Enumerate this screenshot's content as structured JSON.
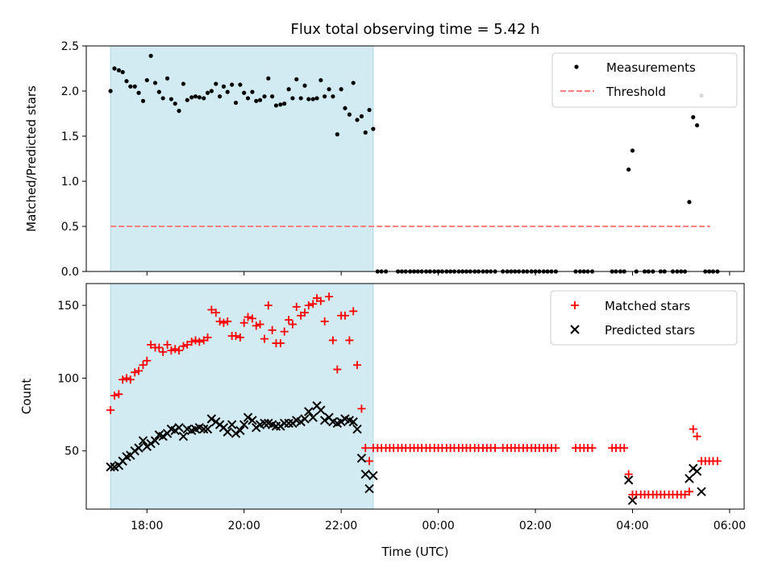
{
  "chart_data": {
    "title": "Flux total observing time = 5.42 h",
    "xlabel": "Time (UTC)",
    "x_unit": "hours since 00:00 of first day (17.25 = 17:15)",
    "x_range": [
      16.75,
      30.3
    ],
    "x_tick_values": [
      18,
      20,
      22,
      24,
      26,
      28,
      30
    ],
    "x_tick_labels": [
      "18:00",
      "20:00",
      "22:00",
      "00:00",
      "02:00",
      "04:00",
      "06:00"
    ],
    "observing_window": [
      17.25,
      22.66
    ],
    "colors": {
      "shade": "#add8e6",
      "matched": "#ff0000",
      "predicted": "#000000",
      "threshold": "#ff7f7f",
      "ratio": "#000000"
    },
    "top": {
      "type": "scatter",
      "ylabel": "Matched/Predicted stars",
      "ylim": [
        0,
        2.5
      ],
      "y_tick_values": [
        0,
        0.5,
        1,
        1.5,
        2,
        2.5
      ],
      "y_tick_labels": [
        "0.0",
        "0.5",
        "1.0",
        "1.5",
        "2.0",
        "2.5"
      ],
      "threshold": 0.5,
      "threshold_x": [
        17.25,
        29.6
      ],
      "legend": [
        "Measurements",
        "Threshold"
      ],
      "points": [
        [
          17.25,
          2.0
        ],
        [
          17.33,
          2.25
        ],
        [
          17.42,
          2.23
        ],
        [
          17.5,
          2.21
        ],
        [
          17.58,
          2.11
        ],
        [
          17.66,
          2.05
        ],
        [
          17.75,
          2.05
        ],
        [
          17.83,
          1.98
        ],
        [
          17.92,
          1.89
        ],
        [
          18.0,
          2.12
        ],
        [
          18.08,
          2.39
        ],
        [
          18.17,
          2.09
        ],
        [
          18.25,
          1.99
        ],
        [
          18.33,
          1.92
        ],
        [
          18.42,
          2.14
        ],
        [
          18.5,
          1.91
        ],
        [
          18.58,
          1.86
        ],
        [
          18.66,
          1.78
        ],
        [
          18.75,
          2.08
        ],
        [
          18.83,
          1.9
        ],
        [
          18.92,
          1.93
        ],
        [
          19.0,
          1.94
        ],
        [
          19.08,
          1.93
        ],
        [
          19.17,
          1.92
        ],
        [
          19.25,
          1.98
        ],
        [
          19.33,
          2.0
        ],
        [
          19.42,
          2.08
        ],
        [
          19.5,
          1.94
        ],
        [
          19.58,
          2.05
        ],
        [
          19.66,
          1.99
        ],
        [
          19.75,
          2.07
        ],
        [
          19.83,
          1.87
        ],
        [
          19.92,
          2.07
        ],
        [
          20.0,
          1.98
        ],
        [
          20.08,
          1.92
        ],
        [
          20.17,
          1.99
        ],
        [
          20.25,
          1.89
        ],
        [
          20.33,
          1.9
        ],
        [
          20.42,
          1.94
        ],
        [
          20.5,
          2.14
        ],
        [
          20.58,
          1.94
        ],
        [
          20.66,
          1.84
        ],
        [
          20.75,
          1.85
        ],
        [
          20.83,
          1.86
        ],
        [
          20.92,
          2.02
        ],
        [
          21.0,
          1.92
        ],
        [
          21.08,
          2.13
        ],
        [
          21.17,
          1.92
        ],
        [
          21.25,
          2.06
        ],
        [
          21.33,
          1.91
        ],
        [
          21.42,
          1.91
        ],
        [
          21.5,
          1.92
        ],
        [
          21.58,
          2.12
        ],
        [
          21.66,
          1.94
        ],
        [
          21.75,
          2.02
        ],
        [
          21.83,
          1.94
        ],
        [
          21.92,
          1.52
        ],
        [
          22.0,
          2.02
        ],
        [
          22.08,
          1.81
        ],
        [
          22.17,
          1.74
        ],
        [
          22.25,
          2.09
        ],
        [
          22.33,
          1.68
        ],
        [
          22.42,
          1.72
        ],
        [
          22.5,
          1.54
        ],
        [
          22.58,
          1.79
        ],
        [
          22.66,
          1.58
        ],
        [
          22.75,
          0
        ],
        [
          22.83,
          0
        ],
        [
          22.92,
          0
        ],
        [
          23.17,
          0
        ],
        [
          23.25,
          0
        ],
        [
          23.33,
          0
        ],
        [
          23.42,
          0
        ],
        [
          23.5,
          0
        ],
        [
          23.58,
          0
        ],
        [
          23.66,
          0
        ],
        [
          23.75,
          0
        ],
        [
          23.83,
          0
        ],
        [
          23.92,
          0
        ],
        [
          24.0,
          0
        ],
        [
          24.08,
          0
        ],
        [
          24.17,
          0
        ],
        [
          24.25,
          0
        ],
        [
          24.33,
          0
        ],
        [
          24.42,
          0
        ],
        [
          24.5,
          0
        ],
        [
          24.58,
          0
        ],
        [
          24.66,
          0
        ],
        [
          24.75,
          0
        ],
        [
          24.83,
          0
        ],
        [
          24.92,
          0
        ],
        [
          25.0,
          0
        ],
        [
          25.08,
          0
        ],
        [
          25.17,
          0
        ],
        [
          25.33,
          0
        ],
        [
          25.42,
          0
        ],
        [
          25.5,
          0
        ],
        [
          25.58,
          0
        ],
        [
          25.66,
          0
        ],
        [
          25.75,
          0
        ],
        [
          25.83,
          0
        ],
        [
          25.92,
          0
        ],
        [
          26.0,
          0
        ],
        [
          26.08,
          0
        ],
        [
          26.17,
          0
        ],
        [
          26.25,
          0
        ],
        [
          26.33,
          0
        ],
        [
          26.42,
          0
        ],
        [
          26.83,
          0
        ],
        [
          26.92,
          0
        ],
        [
          27.0,
          0
        ],
        [
          27.08,
          0
        ],
        [
          27.17,
          0
        ],
        [
          27.58,
          0
        ],
        [
          27.66,
          0
        ],
        [
          27.75,
          0
        ],
        [
          27.83,
          0
        ],
        [
          27.92,
          1.13
        ],
        [
          28.0,
          1.34
        ],
        [
          28.08,
          0
        ],
        [
          28.25,
          0
        ],
        [
          28.33,
          0
        ],
        [
          28.42,
          0
        ],
        [
          28.58,
          0
        ],
        [
          28.66,
          0
        ],
        [
          28.83,
          0
        ],
        [
          28.92,
          0
        ],
        [
          29.0,
          0
        ],
        [
          29.08,
          0
        ],
        [
          29.17,
          0.77
        ],
        [
          29.25,
          1.71
        ],
        [
          29.33,
          1.62
        ],
        [
          29.42,
          1.95
        ],
        [
          29.5,
          0
        ],
        [
          29.58,
          0
        ],
        [
          29.66,
          0
        ],
        [
          29.75,
          0
        ]
      ]
    },
    "bottom": {
      "type": "scatter",
      "ylabel": "Count",
      "ylim": [
        10,
        165
      ],
      "y_tick_values": [
        50,
        100,
        150
      ],
      "y_tick_labels": [
        "50",
        "100",
        "150"
      ],
      "legend": [
        "Matched stars",
        "Predicted stars"
      ],
      "matched": [
        [
          17.25,
          78
        ],
        [
          17.33,
          88
        ],
        [
          17.42,
          89
        ],
        [
          17.5,
          99
        ],
        [
          17.58,
          100
        ],
        [
          17.66,
          99
        ],
        [
          17.75,
          104
        ],
        [
          17.83,
          105
        ],
        [
          17.92,
          109
        ],
        [
          18.0,
          112
        ],
        [
          18.08,
          123
        ],
        [
          18.17,
          121
        ],
        [
          18.25,
          121
        ],
        [
          18.33,
          118
        ],
        [
          18.42,
          123
        ],
        [
          18.5,
          119
        ],
        [
          18.58,
          120
        ],
        [
          18.66,
          119
        ],
        [
          18.75,
          122
        ],
        [
          18.83,
          123
        ],
        [
          18.92,
          125
        ],
        [
          19.0,
          126
        ],
        [
          19.08,
          125
        ],
        [
          19.17,
          126
        ],
        [
          19.25,
          128
        ],
        [
          19.33,
          147
        ],
        [
          19.42,
          145
        ],
        [
          19.5,
          139
        ],
        [
          19.58,
          138
        ],
        [
          19.66,
          139
        ],
        [
          19.75,
          129
        ],
        [
          19.83,
          129
        ],
        [
          19.92,
          128
        ],
        [
          20.0,
          138
        ],
        [
          20.08,
          142
        ],
        [
          20.17,
          141
        ],
        [
          20.25,
          136
        ],
        [
          20.33,
          137
        ],
        [
          20.42,
          127
        ],
        [
          20.5,
          150
        ],
        [
          20.58,
          133
        ],
        [
          20.66,
          124
        ],
        [
          20.75,
          124
        ],
        [
          20.83,
          132
        ],
        [
          20.92,
          140
        ],
        [
          21.0,
          137
        ],
        [
          21.08,
          149
        ],
        [
          21.17,
          143
        ],
        [
          21.25,
          145
        ],
        [
          21.33,
          150
        ],
        [
          21.42,
          151
        ],
        [
          21.5,
          155
        ],
        [
          21.58,
          153
        ],
        [
          21.66,
          139
        ],
        [
          21.75,
          156
        ],
        [
          21.83,
          126
        ],
        [
          21.92,
          106
        ],
        [
          22.0,
          143
        ],
        [
          22.08,
          143
        ],
        [
          22.17,
          126
        ],
        [
          22.25,
          146
        ],
        [
          22.33,
          109
        ],
        [
          22.42,
          79
        ],
        [
          22.5,
          52
        ],
        [
          22.58,
          43
        ],
        [
          22.66,
          52
        ],
        [
          22.75,
          52
        ],
        [
          22.83,
          52
        ],
        [
          22.92,
          52
        ],
        [
          23.0,
          52
        ],
        [
          23.08,
          52
        ],
        [
          23.17,
          52
        ],
        [
          23.25,
          52
        ],
        [
          23.33,
          52
        ],
        [
          23.42,
          52
        ],
        [
          23.5,
          52
        ],
        [
          23.58,
          52
        ],
        [
          23.66,
          52
        ],
        [
          23.75,
          52
        ],
        [
          23.83,
          52
        ],
        [
          23.92,
          52
        ],
        [
          24.0,
          52
        ],
        [
          24.08,
          52
        ],
        [
          24.17,
          52
        ],
        [
          24.25,
          52
        ],
        [
          24.33,
          52
        ],
        [
          24.42,
          52
        ],
        [
          24.5,
          52
        ],
        [
          24.58,
          52
        ],
        [
          24.66,
          52
        ],
        [
          24.75,
          52
        ],
        [
          24.83,
          52
        ],
        [
          24.92,
          52
        ],
        [
          25.0,
          52
        ],
        [
          25.08,
          52
        ],
        [
          25.17,
          52
        ],
        [
          25.33,
          52
        ],
        [
          25.42,
          52
        ],
        [
          25.5,
          52
        ],
        [
          25.58,
          52
        ],
        [
          25.66,
          52
        ],
        [
          25.75,
          52
        ],
        [
          25.83,
          52
        ],
        [
          25.92,
          52
        ],
        [
          26.0,
          52
        ],
        [
          26.08,
          52
        ],
        [
          26.17,
          52
        ],
        [
          26.25,
          52
        ],
        [
          26.33,
          52
        ],
        [
          26.42,
          52
        ],
        [
          26.83,
          52
        ],
        [
          26.92,
          52
        ],
        [
          27.0,
          52
        ],
        [
          27.08,
          52
        ],
        [
          27.17,
          52
        ],
        [
          27.58,
          52
        ],
        [
          27.66,
          52
        ],
        [
          27.75,
          52
        ],
        [
          27.83,
          52
        ],
        [
          27.92,
          34
        ],
        [
          28.0,
          20
        ],
        [
          28.08,
          20
        ],
        [
          28.17,
          20
        ],
        [
          28.25,
          20
        ],
        [
          28.33,
          20
        ],
        [
          28.42,
          20
        ],
        [
          28.5,
          20
        ],
        [
          28.58,
          20
        ],
        [
          28.66,
          20
        ],
        [
          28.75,
          20
        ],
        [
          28.83,
          20
        ],
        [
          28.92,
          20
        ],
        [
          29.0,
          20
        ],
        [
          29.08,
          20
        ],
        [
          29.17,
          22
        ],
        [
          29.25,
          65
        ],
        [
          29.33,
          60
        ],
        [
          29.42,
          43
        ],
        [
          29.5,
          43
        ],
        [
          29.58,
          43
        ],
        [
          29.66,
          43
        ],
        [
          29.75,
          43
        ]
      ],
      "predicted": [
        [
          17.25,
          39
        ],
        [
          17.33,
          39
        ],
        [
          17.42,
          40
        ],
        [
          17.5,
          43
        ],
        [
          17.58,
          46
        ],
        [
          17.66,
          47
        ],
        [
          17.75,
          50
        ],
        [
          17.83,
          52
        ],
        [
          17.92,
          57
        ],
        [
          18.0,
          53
        ],
        [
          18.08,
          55
        ],
        [
          18.17,
          57
        ],
        [
          18.25,
          61
        ],
        [
          18.33,
          60
        ],
        [
          18.42,
          62
        ],
        [
          18.5,
          65
        ],
        [
          18.58,
          64
        ],
        [
          18.66,
          66
        ],
        [
          18.75,
          60
        ],
        [
          18.83,
          65
        ],
        [
          18.92,
          64
        ],
        [
          19.0,
          65
        ],
        [
          19.08,
          66
        ],
        [
          19.17,
          65
        ],
        [
          19.25,
          65
        ],
        [
          19.33,
          72
        ],
        [
          19.42,
          70
        ],
        [
          19.5,
          68
        ],
        [
          19.58,
          66
        ],
        [
          19.66,
          63
        ],
        [
          19.75,
          68
        ],
        [
          19.83,
          62
        ],
        [
          19.92,
          64
        ],
        [
          20.0,
          68
        ],
        [
          20.08,
          73
        ],
        [
          20.17,
          71
        ],
        [
          20.25,
          66
        ],
        [
          20.33,
          68
        ],
        [
          20.42,
          69
        ],
        [
          20.5,
          69
        ],
        [
          20.58,
          68
        ],
        [
          20.66,
          67
        ],
        [
          20.75,
          67
        ],
        [
          20.83,
          69
        ],
        [
          20.92,
          69
        ],
        [
          21.0,
          69
        ],
        [
          21.08,
          71
        ],
        [
          21.17,
          70
        ],
        [
          21.25,
          72
        ],
        [
          21.33,
          77
        ],
        [
          21.42,
          73
        ],
        [
          21.5,
          81
        ],
        [
          21.58,
          78
        ],
        [
          21.66,
          71
        ],
        [
          21.75,
          73
        ],
        [
          21.83,
          70
        ],
        [
          21.92,
          69
        ],
        [
          22.0,
          70
        ],
        [
          22.08,
          72
        ],
        [
          22.17,
          71
        ],
        [
          22.25,
          70
        ],
        [
          22.33,
          65
        ],
        [
          22.42,
          45
        ],
        [
          22.5,
          34
        ],
        [
          22.58,
          24
        ],
        [
          22.66,
          33
        ],
        [
          27.92,
          30
        ],
        [
          28.0,
          16
        ],
        [
          29.17,
          31
        ],
        [
          29.25,
          38
        ],
        [
          29.33,
          36
        ],
        [
          29.42,
          22
        ]
      ]
    }
  }
}
